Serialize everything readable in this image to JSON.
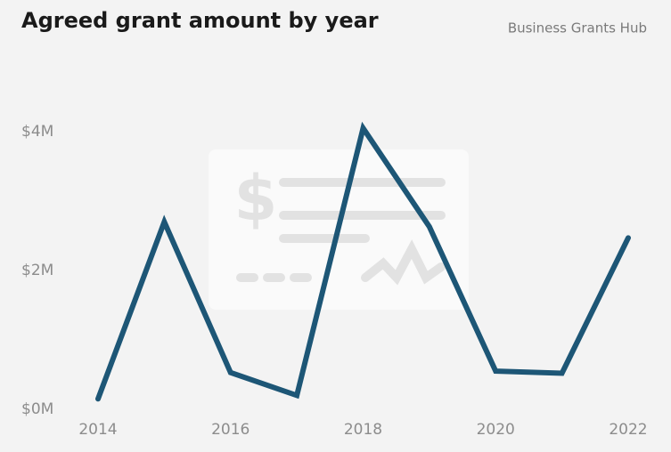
{
  "chart_data": {
    "type": "line",
    "title": "Agreed grant amount by year",
    "source": "Business Grants Hub",
    "x": [
      2014,
      2015,
      2016,
      2017,
      2018,
      2019,
      2020,
      2021,
      2022
    ],
    "series": [
      {
        "name": "Agreed grant amount",
        "color": "#1d5676",
        "values": [
          150000,
          2700000,
          530000,
          200000,
          4050000,
          2630000,
          550000,
          520000,
          2470000
        ]
      }
    ],
    "xlim": [
      2014,
      2022
    ],
    "xticks": [
      2014,
      2016,
      2018,
      2020,
      2022
    ],
    "ylim": [
      0,
      4000000
    ],
    "yticks": [
      {
        "value": 0,
        "label": "$0M"
      },
      {
        "value": 2000000,
        "label": "$2M"
      },
      {
        "value": 4000000,
        "label": "$4M"
      }
    ],
    "grid": false
  }
}
